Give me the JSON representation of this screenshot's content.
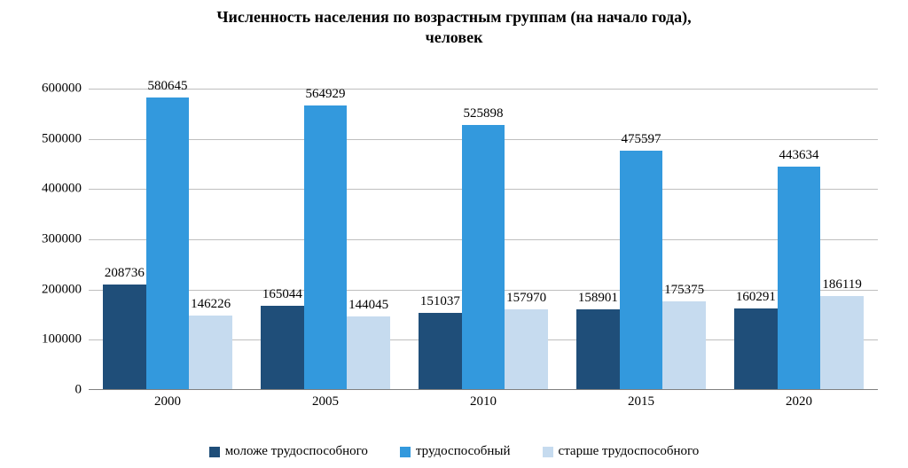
{
  "chart": {
    "type": "bar",
    "title_line1": "Численность населения по возрастным группам (на начало года),",
    "title_line2": "человек",
    "title_fontsize": 18,
    "label_fontsize": 15,
    "datalabel_fontsize": 15,
    "background_color": "#ffffff",
    "grid_color": "#bfbfbf",
    "text_color": "#000000",
    "ylim": [
      0,
      600000
    ],
    "ytick_step": 100000,
    "yticks": [
      0,
      100000,
      200000,
      300000,
      400000,
      500000,
      600000
    ],
    "categories": [
      "2000",
      "2005",
      "2010",
      "2015",
      "2020"
    ],
    "series": [
      {
        "name": "моложе трудоспособного",
        "color": "#1f4e79",
        "values": [
          208736,
          165044,
          151037,
          158901,
          160291
        ]
      },
      {
        "name": "трудоспособный",
        "color": "#3399dd",
        "values": [
          580645,
          564929,
          525898,
          475597,
          443634
        ]
      },
      {
        "name": "старше трудоспособного",
        "color": "#c6dbef",
        "values": [
          146226,
          144045,
          157970,
          175375,
          186119
        ]
      }
    ],
    "group_gap_pct": 0.18,
    "bar_gap_pct": 0.0
  }
}
